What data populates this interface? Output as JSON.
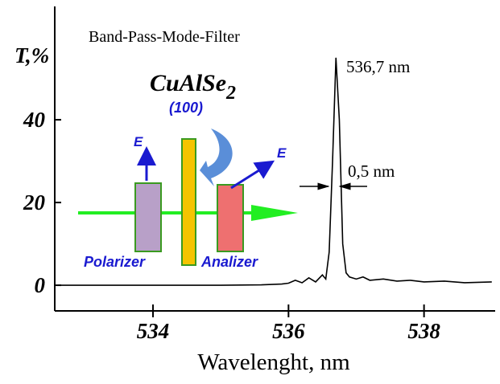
{
  "chart_data": {
    "type": "line",
    "title": "Band-Pass-Mode-Filter",
    "x_label": "Wavelenght, nm",
    "y_label": "T,%",
    "xlim": [
      532.55,
      539.05
    ],
    "ylim": [
      -6.2,
      67.4
    ],
    "xticks": [
      534,
      536,
      538
    ],
    "yticks": [
      0,
      20,
      40
    ],
    "series": [
      {
        "color": "#000000",
        "x": [
          532.6,
          533,
          534,
          535,
          535.6,
          535.9,
          536.0,
          536.1,
          536.2,
          536.3,
          536.4,
          536.5,
          536.55,
          536.6,
          536.65,
          536.7,
          536.75,
          536.8,
          536.85,
          536.9,
          537.0,
          537.1,
          537.2,
          537.4,
          537.6,
          537.8,
          538.0,
          538.3,
          538.6,
          539.0
        ],
        "values": [
          0,
          0,
          0,
          0,
          0.1,
          0.3,
          0.5,
          1.2,
          0.6,
          1.8,
          0.8,
          2.5,
          1.5,
          8,
          30,
          55,
          40,
          10,
          3,
          2,
          1.5,
          2,
          1.2,
          1.5,
          1,
          1.2,
          0.8,
          1,
          0.6,
          0.8
        ]
      }
    ],
    "annotations": {
      "peak": "536,7 nm",
      "width": "0,5 nm"
    },
    "diagram": {
      "crystal": "CuAlSe",
      "crystal_sub": "2",
      "orientation": "(100)",
      "field_1": "E",
      "field_2": "E",
      "polarizer": "Polarizer",
      "analyzer": "Analizer"
    }
  }
}
